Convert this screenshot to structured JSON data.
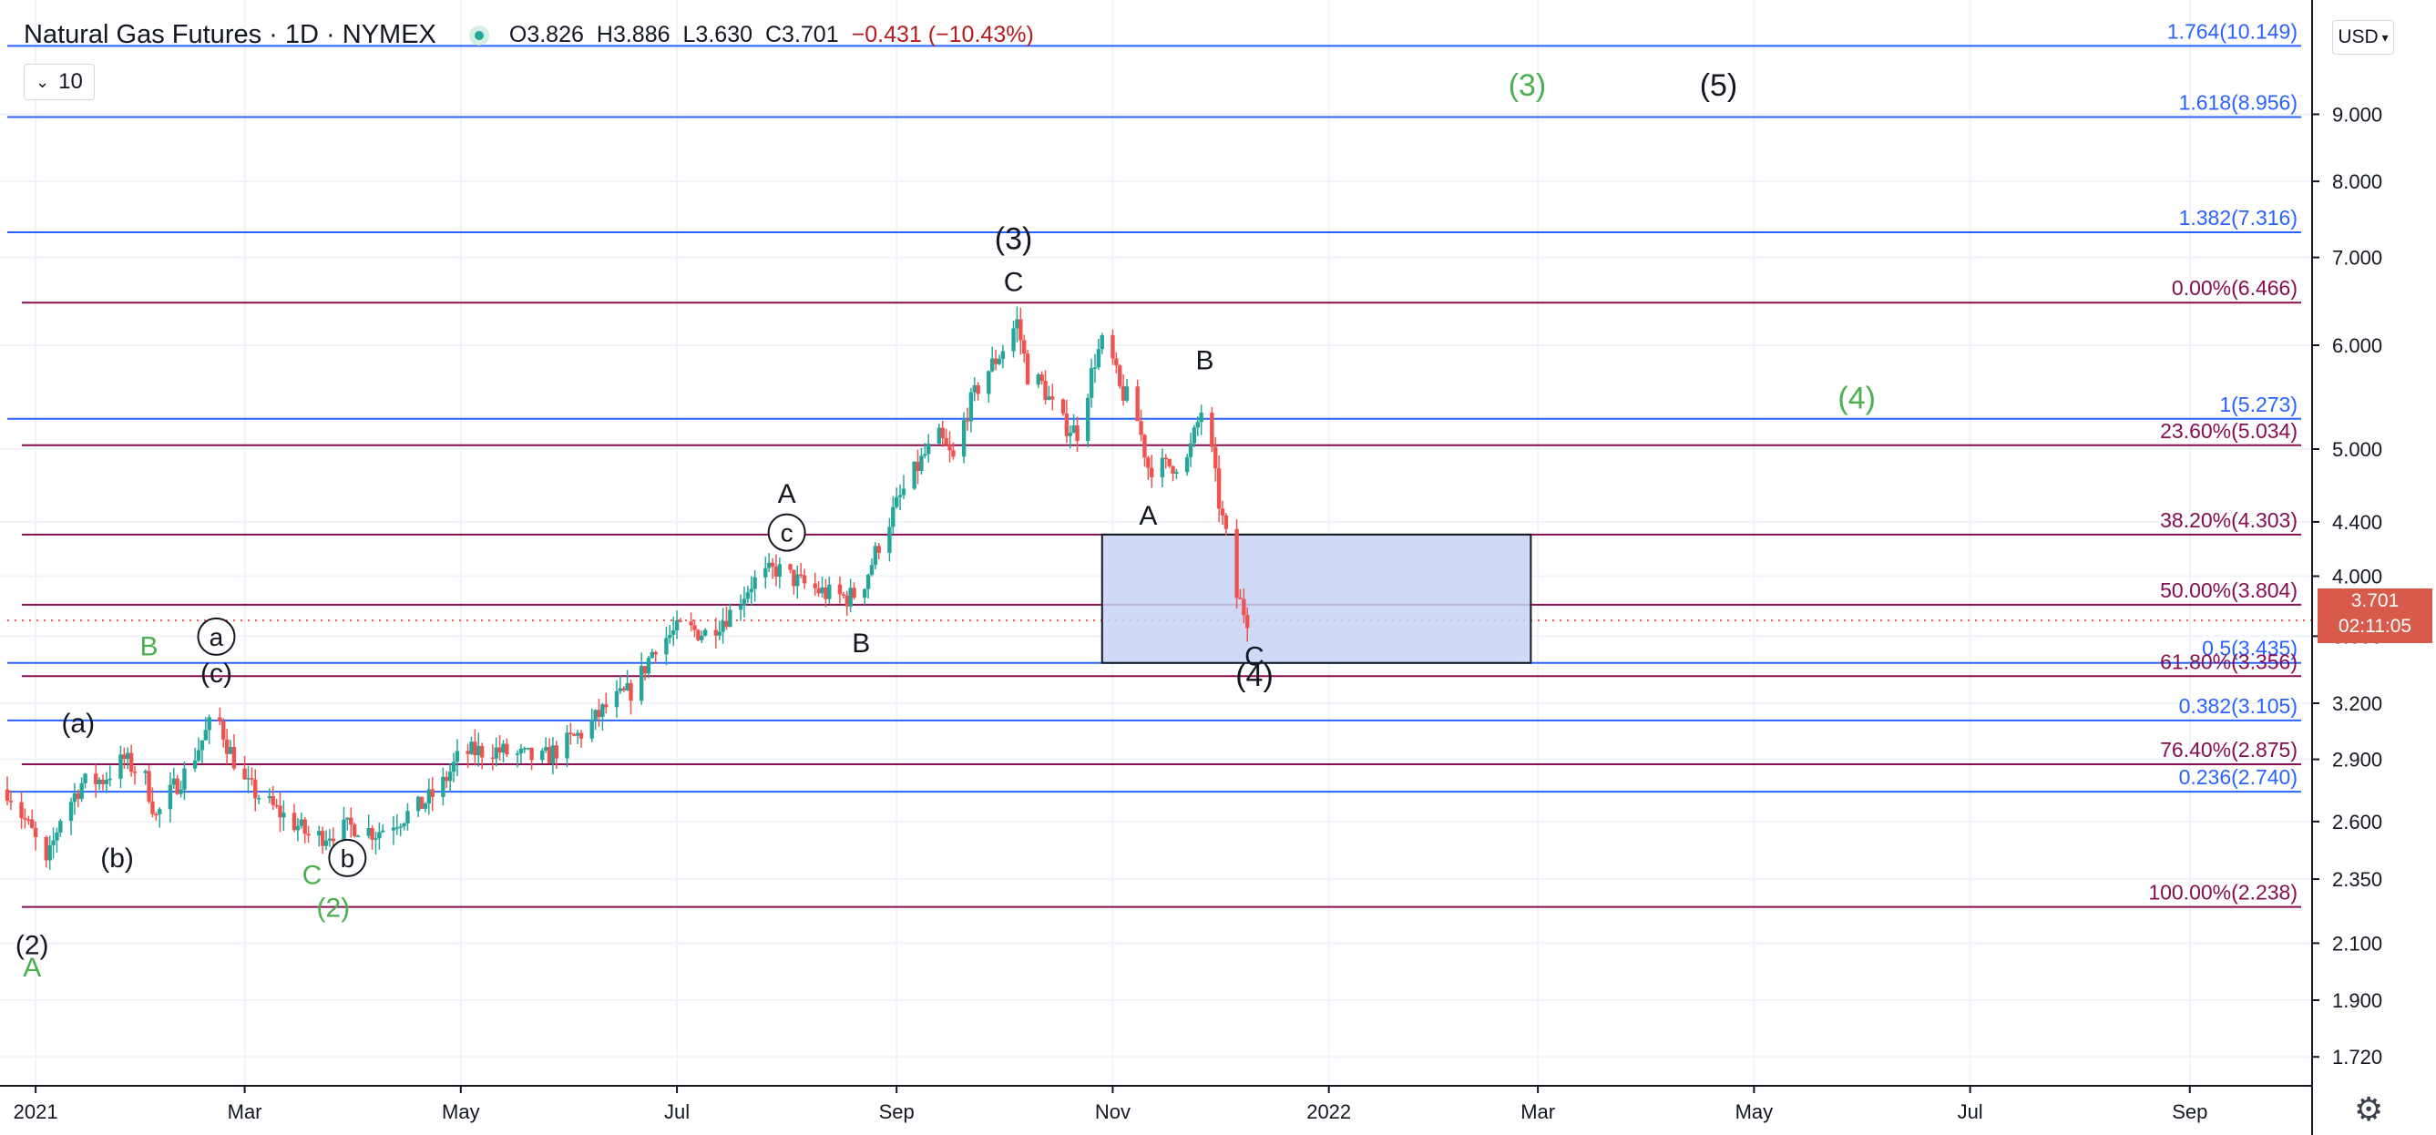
{
  "header": {
    "symbol": "Natural Gas Futures",
    "interval": "1D",
    "exchange": "NYMEX",
    "open": "O3.826",
    "high": "H3.886",
    "low": "L3.630",
    "close": "C3.701",
    "change": "−0.431 (−10.43%)"
  },
  "indicator_toggle": {
    "value": "10"
  },
  "currency_selector": {
    "value": "USD"
  },
  "last_price": {
    "price": "3.701",
    "countdown": "02:11:05"
  },
  "colors": {
    "up": "#26a69a",
    "down": "#ef5350",
    "fib_blue": "#2962ff",
    "fib_maroon": "#880e4f",
    "zone_fill": "#c8d3f6",
    "wave_green": "#4caf50"
  },
  "chart_data": {
    "type": "candlestick",
    "title": "Natural Gas Futures · 1D · NYMEX",
    "y_scale": "log",
    "ylim": [
      1.64,
      11.0
    ],
    "x_range": [
      "2020-12-24",
      "2022-10-05"
    ],
    "y_ticks": [
      "1.720",
      "1.900",
      "2.100",
      "2.350",
      "2.600",
      "2.900",
      "3.200",
      "3.600",
      "4.000",
      "4.400",
      "5.000",
      "6.000",
      "7.000",
      "8.000",
      "9.000"
    ],
    "x_ticks": [
      {
        "label": "2021",
        "date": "2021-01-01"
      },
      {
        "label": "Mar",
        "date": "2021-03-01"
      },
      {
        "label": "May",
        "date": "2021-05-01"
      },
      {
        "label": "Jul",
        "date": "2021-07-01"
      },
      {
        "label": "Sep",
        "date": "2021-09-01"
      },
      {
        "label": "Nov",
        "date": "2021-11-01"
      },
      {
        "label": "2022",
        "date": "2022-01-01"
      },
      {
        "label": "Mar",
        "date": "2022-03-01"
      },
      {
        "label": "May",
        "date": "2022-05-01"
      },
      {
        "label": "Jul",
        "date": "2022-07-01"
      },
      {
        "label": "Sep",
        "date": "2022-09-01"
      }
    ],
    "price_path": [
      [
        "2020-12-24",
        2.75
      ],
      [
        "2020-12-31",
        2.55
      ],
      [
        "2021-01-04",
        2.4
      ],
      [
        "2021-01-08",
        2.62
      ],
      [
        "2021-01-14",
        2.78
      ],
      [
        "2021-01-20",
        2.8
      ],
      [
        "2021-01-26",
        2.9
      ],
      [
        "2021-02-01",
        2.8
      ],
      [
        "2021-02-04",
        2.62
      ],
      [
        "2021-02-09",
        2.76
      ],
      [
        "2021-02-13",
        2.85
      ],
      [
        "2021-02-17",
        3.0
      ],
      [
        "2021-02-21",
        3.15
      ],
      [
        "2021-02-24",
        2.98
      ],
      [
        "2021-03-01",
        2.78
      ],
      [
        "2021-03-05",
        2.72
      ],
      [
        "2021-03-10",
        2.65
      ],
      [
        "2021-03-16",
        2.58
      ],
      [
        "2021-03-20",
        2.52
      ],
      [
        "2021-03-25",
        2.55
      ],
      [
        "2021-04-01",
        2.58
      ],
      [
        "2021-04-07",
        2.55
      ],
      [
        "2021-04-12",
        2.6
      ],
      [
        "2021-04-18",
        2.65
      ],
      [
        "2021-04-25",
        2.75
      ],
      [
        "2021-05-01",
        2.93
      ],
      [
        "2021-05-10",
        2.95
      ],
      [
        "2021-05-17",
        2.92
      ],
      [
        "2021-05-24",
        2.9
      ],
      [
        "2021-05-29",
        2.96
      ],
      [
        "2021-06-05",
        3.05
      ],
      [
        "2021-06-12",
        3.2
      ],
      [
        "2021-06-19",
        3.28
      ],
      [
        "2021-06-25",
        3.55
      ],
      [
        "2021-07-02",
        3.65
      ],
      [
        "2021-07-09",
        3.62
      ],
      [
        "2021-07-16",
        3.75
      ],
      [
        "2021-07-22",
        3.95
      ],
      [
        "2021-07-29",
        4.05
      ],
      [
        "2021-08-05",
        3.95
      ],
      [
        "2021-08-12",
        3.88
      ],
      [
        "2021-08-18",
        3.85
      ],
      [
        "2021-08-22",
        3.9
      ],
      [
        "2021-08-28",
        4.3
      ],
      [
        "2021-09-03",
        4.65
      ],
      [
        "2021-09-09",
        4.95
      ],
      [
        "2021-09-13",
        5.1
      ],
      [
        "2021-09-17",
        4.9
      ],
      [
        "2021-09-21",
        5.35
      ],
      [
        "2021-09-25",
        5.65
      ],
      [
        "2021-09-30",
        5.9
      ],
      [
        "2021-10-05",
        6.25
      ],
      [
        "2021-10-08",
        5.7
      ],
      [
        "2021-10-12",
        5.6
      ],
      [
        "2021-10-17",
        5.25
      ],
      [
        "2021-10-22",
        5.15
      ],
      [
        "2021-10-27",
        5.85
      ],
      [
        "2021-10-30",
        6.1
      ],
      [
        "2021-11-03",
        5.55
      ],
      [
        "2021-11-07",
        5.4
      ],
      [
        "2021-11-11",
        4.85
      ],
      [
        "2021-11-16",
        4.85
      ],
      [
        "2021-11-22",
        4.9
      ],
      [
        "2021-11-26",
        5.35
      ],
      [
        "2021-11-29",
        4.95
      ],
      [
        "2021-12-01",
        4.55
      ],
      [
        "2021-12-04",
        4.15
      ],
      [
        "2021-12-06",
        3.86
      ],
      [
        "2021-12-09",
        3.72
      ]
    ],
    "fib_levels": [
      {
        "label": "1.764(10.149)",
        "value": 10.149,
        "color": "blue"
      },
      {
        "label": "1.618(8.956)",
        "value": 8.956,
        "color": "blue"
      },
      {
        "label": "1.382(7.316)",
        "value": 7.316,
        "color": "blue"
      },
      {
        "label": "0.00%(6.466)",
        "value": 6.466,
        "color": "maroon"
      },
      {
        "label": "1(5.273)",
        "value": 5.273,
        "color": "blue"
      },
      {
        "label": "23.60%(5.034)",
        "value": 5.034,
        "color": "maroon"
      },
      {
        "label": "38.20%(4.303)",
        "value": 4.303,
        "color": "maroon"
      },
      {
        "label": "50.00%(3.804)",
        "value": 3.804,
        "color": "maroon"
      },
      {
        "label": "0.5(3.435)",
        "value": 3.435,
        "color": "blue"
      },
      {
        "label": "61.80%(3.356)",
        "value": 3.356,
        "color": "maroon"
      },
      {
        "label": "0.382(3.105)",
        "value": 3.105,
        "color": "blue"
      },
      {
        "label": "76.40%(2.875)",
        "value": 2.875,
        "color": "maroon"
      },
      {
        "label": "0.236(2.740)",
        "value": 2.74,
        "color": "blue"
      },
      {
        "label": "100.00%(2.238)",
        "value": 2.238,
        "color": "maroon"
      }
    ],
    "target_zone": {
      "date_from": "2021-10-29",
      "date_to": "2022-02-27",
      "price_low": 3.435,
      "price_high": 4.303
    },
    "wave_labels": [
      {
        "text": "(2)",
        "date": "2020-12-31",
        "price": 2.06,
        "color": "black",
        "circle": false
      },
      {
        "text": "A",
        "date": "2020-12-31",
        "price": 1.98,
        "color": "green",
        "circle": false
      },
      {
        "text": "(a)",
        "date": "2021-01-13",
        "price": 3.04,
        "color": "black",
        "circle": false
      },
      {
        "text": "(b)",
        "date": "2021-01-24",
        "price": 2.4,
        "color": "black",
        "circle": false
      },
      {
        "text": "a",
        "date": "2021-02-21",
        "price": 3.54,
        "color": "black",
        "circle": true
      },
      {
        "text": "(c)",
        "date": "2021-02-21",
        "price": 3.32,
        "color": "black",
        "circle": false
      },
      {
        "text": "B",
        "date": "2021-02-02",
        "price": 3.48,
        "color": "green",
        "circle": false
      },
      {
        "text": "C",
        "date": "2021-03-20",
        "price": 2.33,
        "color": "green",
        "circle": false
      },
      {
        "text": "b",
        "date": "2021-03-30",
        "price": 2.4,
        "color": "black",
        "circle": true
      },
      {
        "text": "(2)",
        "date": "2021-03-26",
        "price": 2.2,
        "color": "green",
        "circle": false
      },
      {
        "text": "A",
        "date": "2021-08-01",
        "price": 4.55,
        "color": "black",
        "circle": false
      },
      {
        "text": "c",
        "date": "2021-08-01",
        "price": 4.25,
        "color": "black",
        "circle": true
      },
      {
        "text": "B",
        "date": "2021-08-22",
        "price": 3.5,
        "color": "black",
        "circle": false
      },
      {
        "text": "(3)",
        "date": "2021-10-04",
        "price": 7.1,
        "color": "black",
        "circle": false
      },
      {
        "text": "C",
        "date": "2021-10-04",
        "price": 6.6,
        "color": "black",
        "circle": false
      },
      {
        "text": "B",
        "date": "2021-11-27",
        "price": 5.75,
        "color": "black",
        "circle": false
      },
      {
        "text": "A",
        "date": "2021-11-11",
        "price": 4.38,
        "color": "black",
        "circle": false
      },
      {
        "text": "C",
        "date": "2021-12-11",
        "price": 3.42,
        "color": "black",
        "circle": false
      },
      {
        "text": "(4)",
        "date": "2021-12-11",
        "price": 3.3,
        "color": "black",
        "circle": false
      },
      {
        "text": "(3)",
        "date": "2022-02-26",
        "price": 9.3,
        "color": "green",
        "circle": false
      },
      {
        "text": "(5)",
        "date": "2022-04-21",
        "price": 9.3,
        "color": "black",
        "circle": false
      },
      {
        "text": "(4)",
        "date": "2022-05-30",
        "price": 5.37,
        "color": "green",
        "circle": false
      }
    ]
  }
}
